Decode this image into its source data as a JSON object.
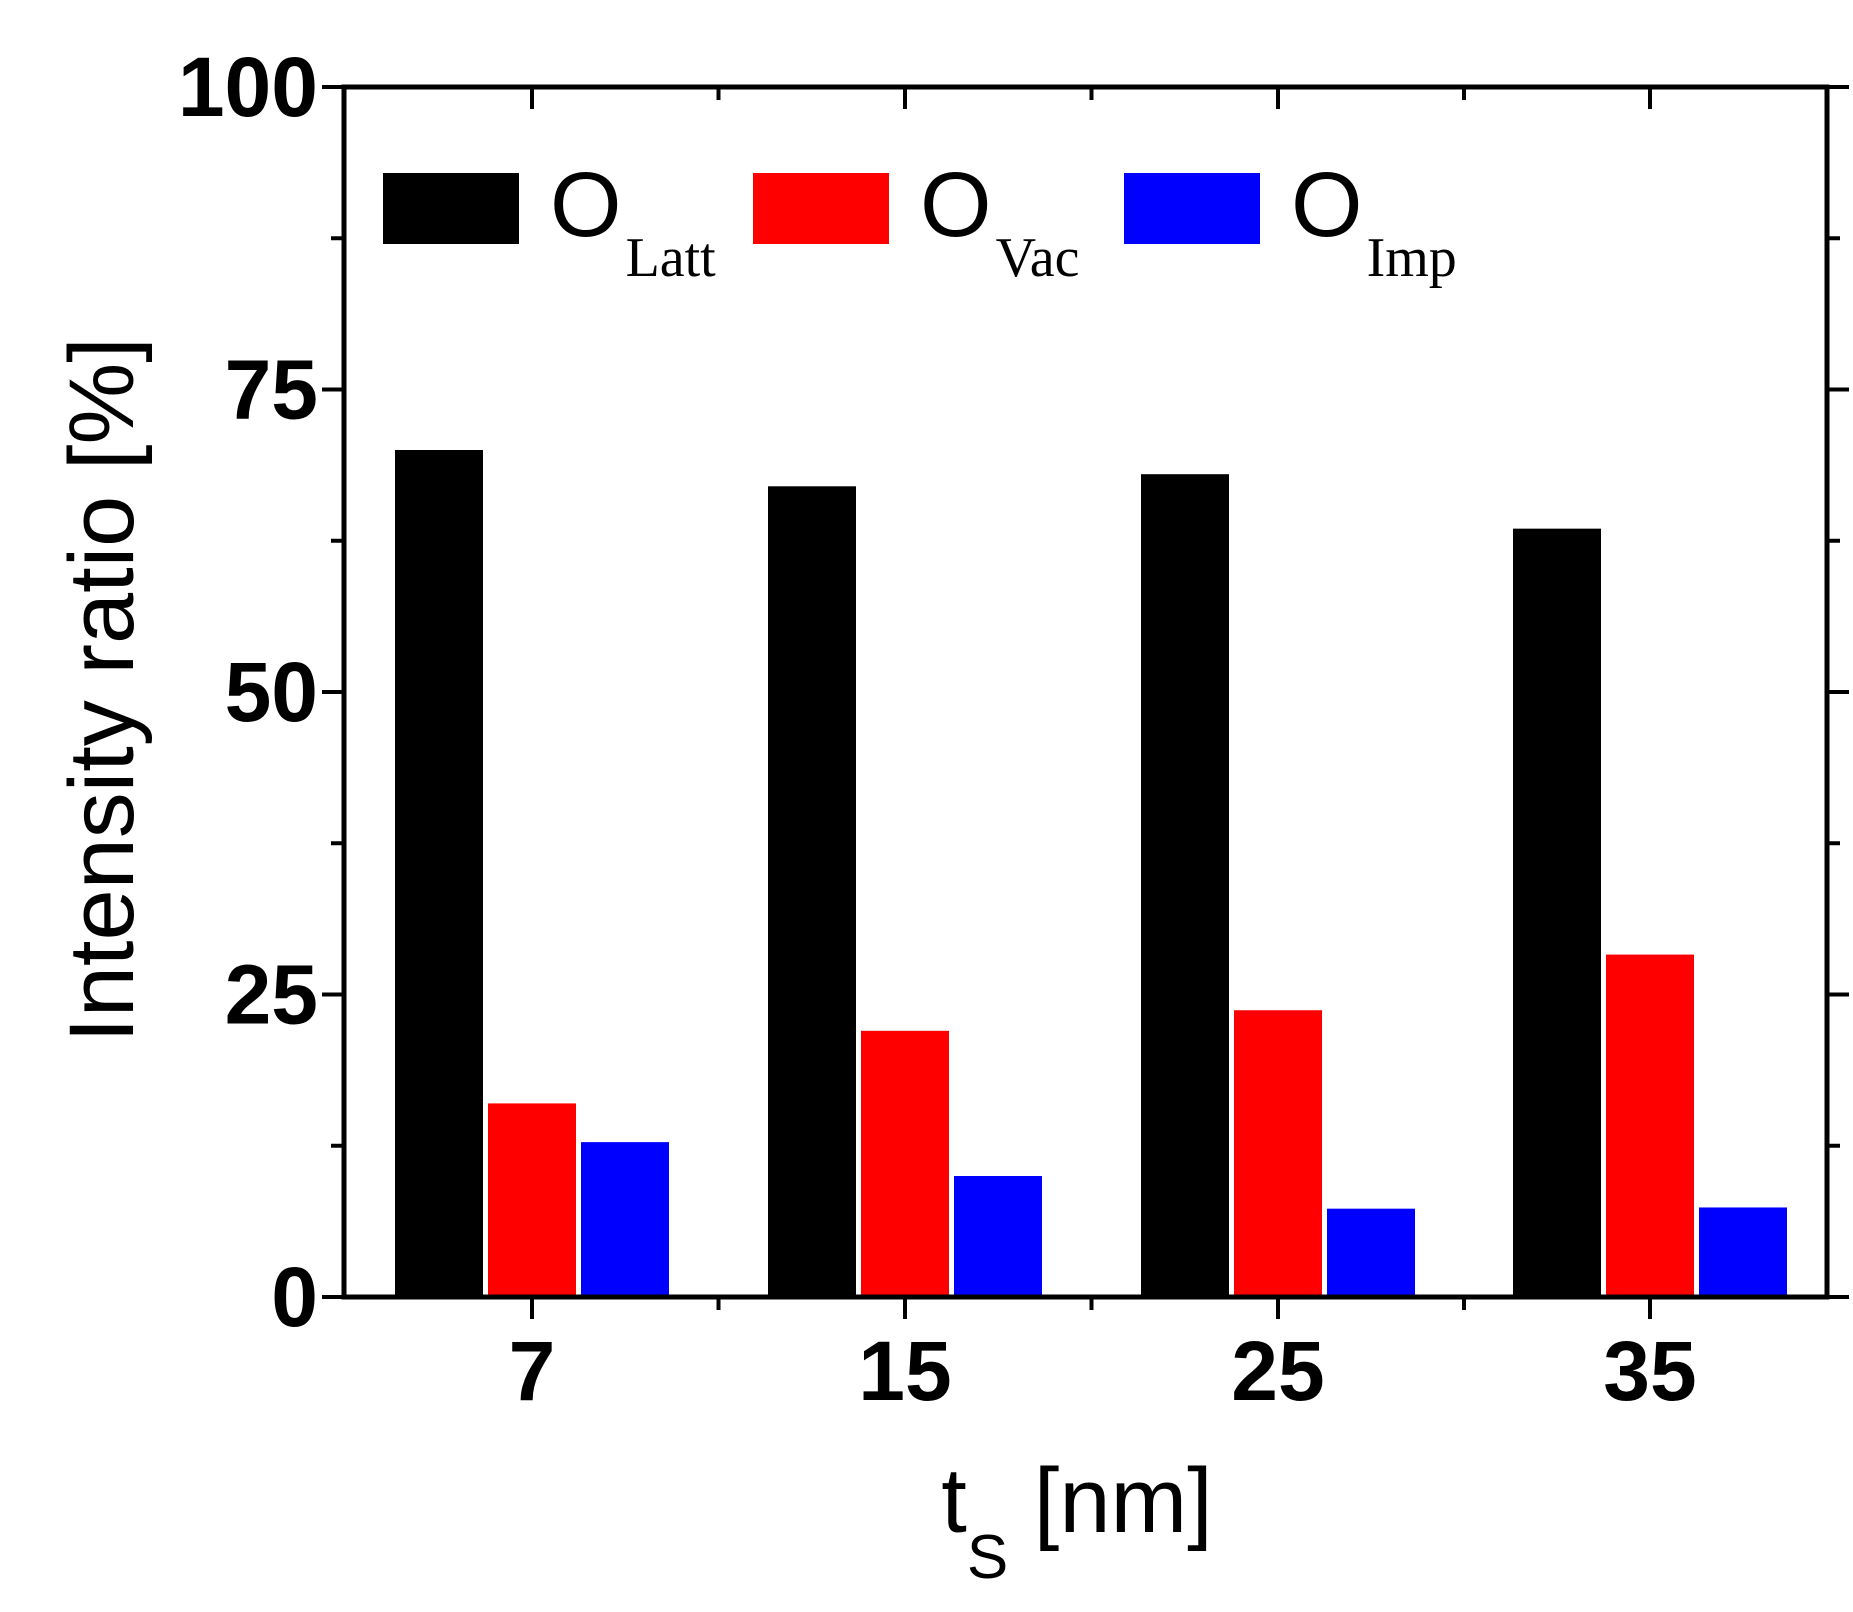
{
  "chart_data": {
    "type": "bar",
    "categories": [
      "7",
      "15",
      "25",
      "35"
    ],
    "series": [
      {
        "name": "O",
        "subscript": "Latt",
        "color": "#000000",
        "values": [
          70,
          67,
          68,
          63.5
        ]
      },
      {
        "name": "O",
        "subscript": "Vac",
        "color": "#ff0000",
        "values": [
          16,
          22,
          23.7,
          28.3
        ]
      },
      {
        "name": "O",
        "subscript": "Imp",
        "color": "#0000ff",
        "values": [
          12.8,
          10,
          7.3,
          7.4
        ]
      }
    ],
    "ylim": [
      0,
      100
    ],
    "yticks": [
      "0",
      "25",
      "50",
      "75",
      "100"
    ],
    "ylabel": "Intensity ratio [%]",
    "xlabel_main": "t",
    "xlabel_sub": "S",
    "xlabel_unit": " [nm]",
    "legend_position": "top"
  }
}
